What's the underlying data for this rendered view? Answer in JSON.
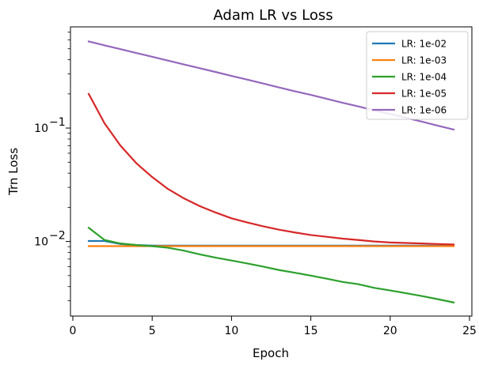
{
  "chart_data": {
    "type": "line",
    "title": "Adam LR vs Loss",
    "xlabel": "Epoch",
    "ylabel": "Trn Loss",
    "y_scale": "log",
    "xlim": [
      -0.15,
      25.15
    ],
    "ylim": [
      0.0022,
      0.78
    ],
    "x_ticks": [
      0,
      5,
      10,
      15,
      20,
      25
    ],
    "y_major_ticks": [
      {
        "value": 0.01,
        "base": "10",
        "exp": "−2"
      },
      {
        "value": 0.1,
        "base": "10",
        "exp": "−1"
      }
    ],
    "y_minor_ticks": [
      0.003,
      0.004,
      0.005,
      0.006,
      0.007,
      0.008,
      0.009,
      0.02,
      0.03,
      0.04,
      0.05,
      0.06,
      0.07,
      0.08,
      0.09,
      0.2,
      0.3,
      0.4,
      0.5,
      0.6,
      0.7
    ],
    "legend_position": "top-right",
    "grid": false,
    "x": [
      1,
      2,
      3,
      4,
      5,
      6,
      7,
      8,
      9,
      10,
      11,
      12,
      13,
      14,
      15,
      16,
      17,
      18,
      19,
      20,
      21,
      22,
      23,
      24
    ],
    "series": [
      {
        "name": "LR: 1e-02",
        "color": "#1f77b4",
        "values": [
          0.0101,
          0.0101,
          0.0095,
          0.0093,
          0.0092,
          0.0092,
          0.0092,
          0.0092,
          0.0092,
          0.0092,
          0.0092,
          0.0092,
          0.0092,
          0.0092,
          0.0092,
          0.0092,
          0.0092,
          0.0092,
          0.0092,
          0.0092,
          0.0092,
          0.0092,
          0.0092,
          0.0092
        ]
      },
      {
        "name": "LR: 1e-03",
        "color": "#ff7f0e",
        "values": [
          0.0091,
          0.0091,
          0.0091,
          0.0091,
          0.0091,
          0.0091,
          0.0091,
          0.0091,
          0.0091,
          0.0091,
          0.0091,
          0.0091,
          0.0091,
          0.0091,
          0.0091,
          0.0091,
          0.0091,
          0.0091,
          0.0091,
          0.0091,
          0.0091,
          0.0091,
          0.0091,
          0.0091
        ]
      },
      {
        "name": "LR: 1e-04",
        "color": "#2ca02c",
        "values": [
          0.0132,
          0.0103,
          0.0096,
          0.0093,
          0.0091,
          0.0088,
          0.0083,
          0.0077,
          0.0072,
          0.0068,
          0.0064,
          0.006,
          0.0056,
          0.0053,
          0.005,
          0.0047,
          0.0044,
          0.0042,
          0.0039,
          0.0037,
          0.0035,
          0.0033,
          0.0031,
          0.0029
        ]
      },
      {
        "name": "LR: 1e-05",
        "color": "#d62728",
        "values": [
          0.2,
          0.11,
          0.07,
          0.049,
          0.037,
          0.029,
          0.024,
          0.0205,
          0.018,
          0.016,
          0.0147,
          0.0136,
          0.0127,
          0.012,
          0.0114,
          0.011,
          0.0106,
          0.0103,
          0.01,
          0.0098,
          0.0097,
          0.0096,
          0.0095,
          0.0094
        ]
      },
      {
        "name": "LR: 1e-06",
        "color": "#9467bd",
        "values": [
          0.58,
          0.536,
          0.496,
          0.459,
          0.425,
          0.393,
          0.364,
          0.337,
          0.312,
          0.288,
          0.267,
          0.247,
          0.228,
          0.211,
          0.196,
          0.181,
          0.167,
          0.155,
          0.143,
          0.133,
          0.123,
          0.114,
          0.105,
          0.097
        ]
      }
    ]
  }
}
